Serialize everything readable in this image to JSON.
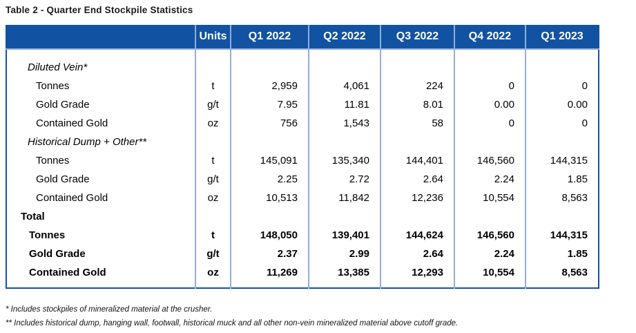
{
  "title": "Table 2 - Quarter End Stockpile Statistics",
  "colors": {
    "header_bg": "#1252A2",
    "grid_line": "#8FAFD9",
    "outer_border": "#1252A2",
    "text": "#000000"
  },
  "table": {
    "columns": [
      "",
      "Units",
      "Q1 2022",
      "Q2 2022",
      "Q3 2022",
      "Q4 2022",
      "Q1 2023"
    ],
    "rows": [
      {
        "label": "Diluted Vein*",
        "style": "section",
        "units": "",
        "values": [
          "",
          "",
          "",
          "",
          ""
        ]
      },
      {
        "label": "Tonnes",
        "style": "item",
        "units": "t",
        "values": [
          "2,959",
          "4,061",
          "224",
          "0",
          "0"
        ]
      },
      {
        "label": "Gold Grade",
        "style": "item",
        "units": "g/t",
        "values": [
          "7.95",
          "11.81",
          "8.01",
          "0.00",
          "0.00"
        ]
      },
      {
        "label": "Contained Gold",
        "style": "item",
        "units": "oz",
        "values": [
          "756",
          "1,543",
          "58",
          "0",
          "0"
        ]
      },
      {
        "label": "Historical Dump + Other**",
        "style": "section",
        "units": "",
        "values": [
          "",
          "",
          "",
          "",
          ""
        ]
      },
      {
        "label": "Tonnes",
        "style": "item",
        "units": "t",
        "values": [
          "145,091",
          "135,340",
          "144,401",
          "146,560",
          "144,315"
        ]
      },
      {
        "label": "Gold Grade",
        "style": "item",
        "units": "g/t",
        "values": [
          "2.25",
          "2.72",
          "2.64",
          "2.24",
          "1.85"
        ]
      },
      {
        "label": "Contained Gold",
        "style": "item",
        "units": "oz",
        "values": [
          "10,513",
          "11,842",
          "12,236",
          "10,554",
          "8,563"
        ]
      },
      {
        "label": "Total",
        "style": "total",
        "units": "",
        "values": [
          "",
          "",
          "",
          "",
          ""
        ]
      },
      {
        "label": "Tonnes",
        "style": "total-item",
        "units": "t",
        "values": [
          "148,050",
          "139,401",
          "144,624",
          "146,560",
          "144,315"
        ]
      },
      {
        "label": "Gold Grade",
        "style": "total-item",
        "units": "g/t",
        "values": [
          "2.37",
          "2.99",
          "2.64",
          "2.24",
          "1.85"
        ]
      },
      {
        "label": "Contained Gold",
        "style": "total-item",
        "units": "oz",
        "values": [
          "11,269",
          "13,385",
          "12,293",
          "10,554",
          "8,563"
        ]
      }
    ]
  },
  "footnotes": [
    "* Includes stockpiles of mineralized material at the crusher.",
    "** Includes historical dump, hanging wall, footwall, historical muck and all other non-vein mineralized material above cutoff grade."
  ]
}
